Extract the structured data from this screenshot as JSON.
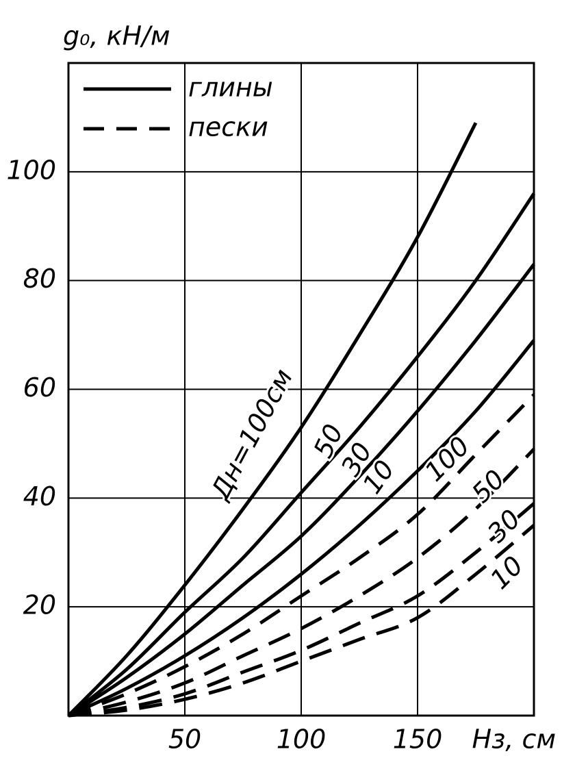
{
  "chart_data": {
    "type": "line",
    "y_label": "g₀, кН/м",
    "x_label": "Hз, см",
    "x": [
      0,
      25,
      50,
      75,
      100,
      125,
      150,
      175,
      200
    ],
    "xlim": [
      0,
      200
    ],
    "ylim": [
      0,
      120
    ],
    "xticks": [
      50,
      100,
      150
    ],
    "yticks": [
      20,
      40,
      60,
      80,
      100
    ],
    "grid": true,
    "color": "#000000",
    "legend": [
      {
        "label": "глины",
        "style": "solid"
      },
      {
        "label": "пески",
        "style": "dashed"
      }
    ],
    "series": [
      {
        "name": "Дн=100см",
        "style": "solid",
        "values": [
          0,
          11,
          24,
          38,
          53,
          70,
          88,
          109,
          null
        ]
      },
      {
        "name": "50",
        "style": "solid",
        "values": [
          0,
          8.5,
          19,
          29,
          41,
          53,
          66,
          80,
          96
        ]
      },
      {
        "name": "30",
        "style": "solid",
        "values": [
          0,
          7,
          15,
          24,
          33,
          44,
          56,
          69,
          83
        ]
      },
      {
        "name": "10",
        "style": "solid",
        "values": [
          0,
          5,
          11,
          18,
          26,
          35,
          45,
          56,
          69
        ]
      },
      {
        "name": "100",
        "style": "dashed",
        "values": [
          0,
          4,
          9,
          15,
          22,
          29,
          37,
          48,
          59
        ]
      },
      {
        "name": "50",
        "style": "dashed",
        "values": [
          0,
          2.5,
          6,
          11,
          16,
          22,
          29,
          38,
          49
        ]
      },
      {
        "name": "30",
        "style": "dashed",
        "values": [
          0,
          1.5,
          4,
          8,
          12,
          17,
          22,
          30,
          39
        ]
      },
      {
        "name": "10",
        "style": "dashed",
        "values": [
          0,
          1,
          3,
          6,
          10,
          14,
          18,
          26,
          35
        ]
      }
    ]
  }
}
